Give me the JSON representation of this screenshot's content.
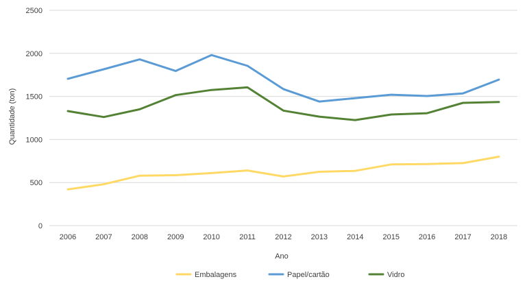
{
  "chart_data": {
    "type": "line",
    "title": "",
    "xlabel": "Ano",
    "ylabel": "Quantidade (ton)",
    "ylim": [
      0,
      2500
    ],
    "yticks": [
      0,
      500,
      1000,
      1500,
      2000,
      2500
    ],
    "grid": true,
    "legend_position": "bottom",
    "categories": [
      "2006",
      "2007",
      "2008",
      "2009",
      "2010",
      "2011",
      "2012",
      "2013",
      "2014",
      "2015",
      "2016",
      "2017",
      "2018"
    ],
    "series": [
      {
        "name": "Embalagens",
        "color": "#ffd966",
        "values": [
          420,
          480,
          580,
          585,
          610,
          640,
          570,
          625,
          635,
          710,
          715,
          725,
          800
        ]
      },
      {
        "name": "Papel/cartão",
        "color": "#5b9bd5",
        "values": [
          1705,
          1815,
          1930,
          1795,
          1980,
          1855,
          1585,
          1440,
          1480,
          1520,
          1505,
          1535,
          1695
        ]
      },
      {
        "name": "Vidro",
        "color": "#548235",
        "values": [
          1330,
          1260,
          1350,
          1515,
          1575,
          1605,
          1335,
          1265,
          1225,
          1290,
          1305,
          1425,
          1435
        ]
      }
    ]
  }
}
